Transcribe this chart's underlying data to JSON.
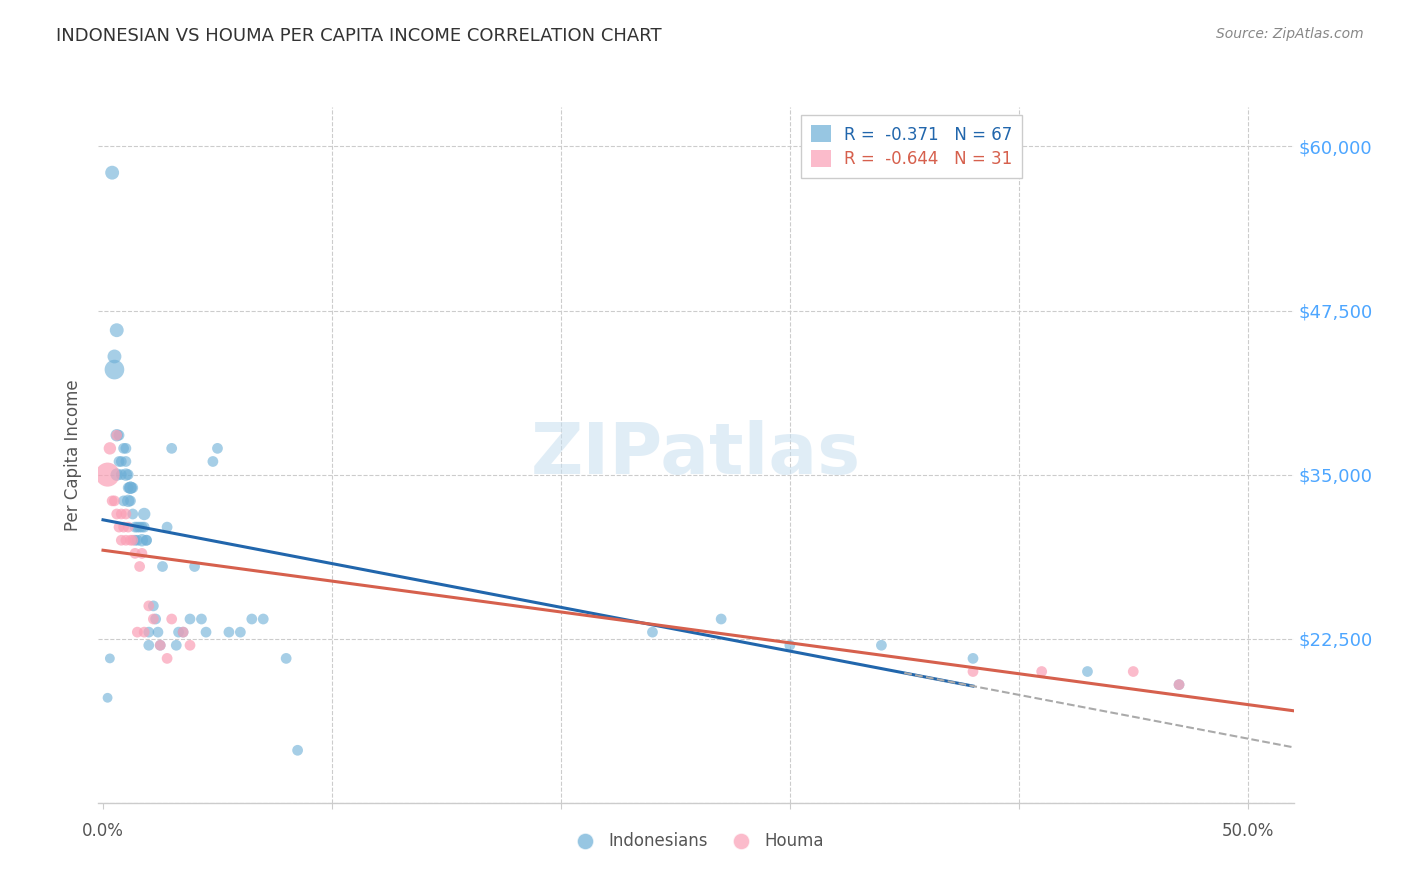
{
  "title": "INDONESIAN VS HOUMA PER CAPITA INCOME CORRELATION CHART",
  "source": "Source: ZipAtlas.com",
  "ylabel": "Per Capita Income",
  "watermark": "ZIPatlas",
  "ytick_labels": [
    "$60,000",
    "$47,500",
    "$35,000",
    "$22,500"
  ],
  "ytick_values": [
    60000,
    47500,
    35000,
    22500
  ],
  "ymin": 10000,
  "ymax": 63000,
  "xmin": -0.002,
  "xmax": 0.52,
  "legend_r1": "R =  -0.371   N = 67",
  "legend_r2": "R =  -0.644   N = 31",
  "blue_color": "#6baed6",
  "pink_color": "#fa9fb5",
  "blue_line_color": "#2166ac",
  "pink_line_color": "#d6604d",
  "dashed_line_color": "#aaaaaa",
  "title_color": "#333333",
  "source_color": "#888888",
  "axis_label_color": "#555555",
  "ytick_color": "#4da6ff",
  "xtick_color": "#555555",
  "indonesians_x": [
    0.002,
    0.003,
    0.004,
    0.005,
    0.005,
    0.006,
    0.006,
    0.006,
    0.007,
    0.007,
    0.008,
    0.008,
    0.009,
    0.009,
    0.01,
    0.01,
    0.01,
    0.011,
    0.011,
    0.011,
    0.012,
    0.012,
    0.012,
    0.013,
    0.013,
    0.014,
    0.014,
    0.015,
    0.015,
    0.016,
    0.017,
    0.017,
    0.018,
    0.018,
    0.019,
    0.019,
    0.02,
    0.02,
    0.022,
    0.023,
    0.024,
    0.025,
    0.026,
    0.028,
    0.03,
    0.032,
    0.033,
    0.035,
    0.038,
    0.04,
    0.043,
    0.045,
    0.048,
    0.05,
    0.055,
    0.06,
    0.065,
    0.07,
    0.08,
    0.085,
    0.24,
    0.27,
    0.3,
    0.34,
    0.38,
    0.43,
    0.47
  ],
  "indonesians_y": [
    18000,
    21000,
    58000,
    44000,
    43000,
    46000,
    38000,
    35000,
    38000,
    36000,
    36000,
    35000,
    37000,
    33000,
    37000,
    36000,
    35000,
    35000,
    34000,
    33000,
    34000,
    33000,
    34000,
    32000,
    34000,
    31000,
    30000,
    31000,
    30000,
    31000,
    31000,
    30000,
    32000,
    31000,
    30000,
    30000,
    23000,
    22000,
    25000,
    24000,
    23000,
    22000,
    28000,
    31000,
    37000,
    22000,
    23000,
    23000,
    24000,
    28000,
    24000,
    23000,
    36000,
    37000,
    23000,
    23000,
    24000,
    24000,
    21000,
    14000,
    23000,
    24000,
    22000,
    22000,
    21000,
    20000,
    19000
  ],
  "houma_x": [
    0.002,
    0.003,
    0.004,
    0.005,
    0.006,
    0.006,
    0.007,
    0.008,
    0.008,
    0.009,
    0.01,
    0.01,
    0.011,
    0.012,
    0.013,
    0.014,
    0.015,
    0.016,
    0.017,
    0.018,
    0.02,
    0.022,
    0.025,
    0.028,
    0.03,
    0.035,
    0.038,
    0.38,
    0.41,
    0.45,
    0.47
  ],
  "houma_y": [
    35000,
    37000,
    33000,
    33000,
    38000,
    32000,
    31000,
    32000,
    30000,
    31000,
    32000,
    30000,
    31000,
    30000,
    30000,
    29000,
    23000,
    28000,
    29000,
    23000,
    25000,
    24000,
    22000,
    21000,
    24000,
    23000,
    22000,
    20000,
    20000,
    20000,
    19000
  ],
  "indonesians_sizes": [
    50,
    50,
    100,
    100,
    200,
    100,
    80,
    80,
    60,
    60,
    60,
    60,
    60,
    60,
    60,
    60,
    80,
    60,
    60,
    80,
    80,
    60,
    80,
    60,
    60,
    60,
    60,
    60,
    60,
    60,
    60,
    80,
    80,
    60,
    60,
    60,
    60,
    60,
    60,
    60,
    60,
    60,
    60,
    60,
    60,
    60,
    60,
    60,
    60,
    60,
    60,
    60,
    60,
    60,
    60,
    60,
    60,
    60,
    60,
    60,
    60,
    60,
    60,
    60,
    60,
    60,
    60
  ],
  "houma_sizes": [
    300,
    80,
    60,
    60,
    60,
    60,
    60,
    60,
    60,
    60,
    60,
    60,
    60,
    60,
    60,
    60,
    60,
    60,
    60,
    60,
    60,
    60,
    60,
    60,
    60,
    60,
    60,
    60,
    60,
    60,
    60
  ]
}
